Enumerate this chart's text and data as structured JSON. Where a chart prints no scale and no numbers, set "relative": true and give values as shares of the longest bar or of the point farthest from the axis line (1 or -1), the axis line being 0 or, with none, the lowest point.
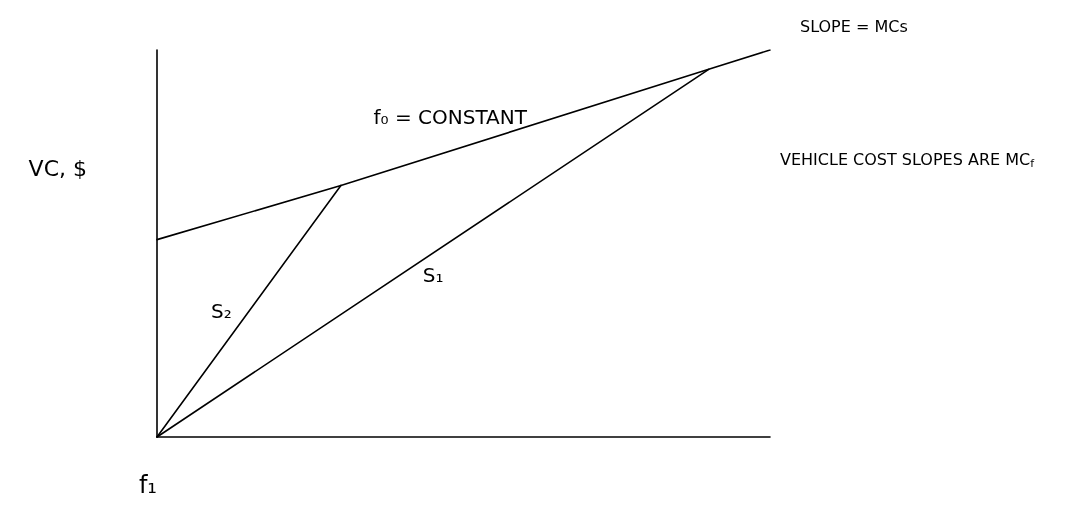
{
  "chart_data": {
    "type": "line",
    "relative": true,
    "xlabel": "f₁",
    "ylabel": "VC, $",
    "categories": [
      null,
      null,
      null,
      null,
      null,
      null,
      null,
      null,
      null,
      null,
      null,
      null,
      null,
      null,
      null,
      null,
      null,
      null,
      null,
      null,
      null
    ],
    "series": [
      {
        "name": "f₀ = CONSTANT",
        "color": "#000000",
        "values": [
          0.51,
          null,
          null,
          null,
          null,
          null,
          0.65,
          null,
          null,
          null,
          null,
          null,
          null,
          null,
          null,
          null,
          null,
          null,
          0.95,
          null,
          1
        ]
      },
      {
        "name": "S₂",
        "color": "#000000",
        "values": [
          0,
          null,
          null,
          null,
          null,
          null,
          0.65,
          null,
          null,
          null,
          null,
          null,
          null,
          null,
          null,
          null,
          null,
          null,
          null,
          null,
          null
        ]
      },
      {
        "name": "S₁",
        "color": "#000000",
        "values": [
          0,
          null,
          null,
          null,
          null,
          null,
          null,
          null,
          null,
          null,
          null,
          null,
          null,
          null,
          null,
          null,
          null,
          null,
          0.95,
          null,
          null
        ]
      }
    ],
    "annotations": [
      "SLOPE = MCs",
      "VEHICLE COST SLOPES ARE MC$_{f}$"
    ],
    "grid": false,
    "legend": false,
    "marker": "none",
    "line_style": "solid"
  }
}
